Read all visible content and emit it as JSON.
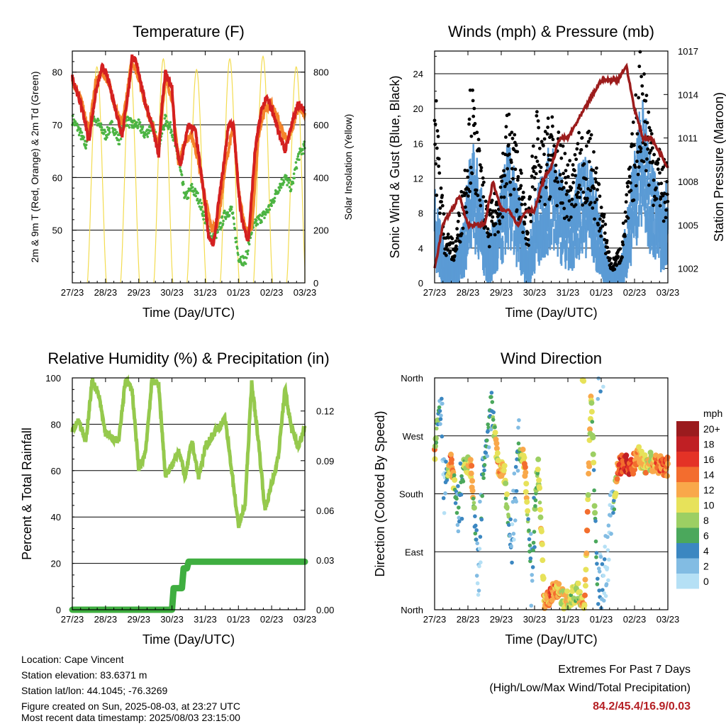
{
  "chart_data": [
    {
      "type": "line",
      "title": "Temperature (F)",
      "xlabel": "Time (Day/UTC)",
      "ylabel": "2m & 9m T (Red, Orange) & 2m Td (Green)",
      "ylabel_right": "Solar Insolation (Yellow)",
      "x_ticks": [
        "27/23",
        "28/23",
        "29/23",
        "30/23",
        "31/23",
        "01/23",
        "02/23",
        "03/23"
      ],
      "ylim": [
        40,
        84
      ],
      "y_ticks": [
        50,
        60,
        70,
        80
      ],
      "ylim_right": [
        0,
        880
      ],
      "y_ticks_right": [
        0,
        200,
        400,
        600,
        800
      ],
      "grid": true,
      "colors": {
        "t2m": "#d42020",
        "t9m": "#f4832a",
        "td2m": "#4cb443",
        "solar": "#f3dc50"
      },
      "series": [
        {
          "name": "2m T",
          "x": [
            0,
            0.1,
            0.3,
            0.5,
            0.7,
            0.9,
            1.0,
            1.1,
            1.3,
            1.5,
            1.7,
            1.8,
            1.9,
            2.0,
            2.2,
            2.4,
            2.6,
            2.7,
            2.8,
            3.0,
            3.1,
            3.25,
            3.4,
            3.5,
            3.7,
            3.85,
            4.0,
            4.1,
            4.25,
            4.4,
            4.55,
            4.7,
            4.85,
            5.0,
            5.1,
            5.3,
            5.5,
            5.7,
            5.85,
            6.0,
            6.2,
            6.4,
            6.6,
            6.8,
            7.0
          ],
          "values": [
            79,
            77,
            73,
            67,
            76,
            81,
            80,
            78,
            73,
            68,
            77,
            83,
            82,
            80,
            74,
            70,
            64,
            74,
            80,
            77,
            67,
            62,
            67,
            70,
            69,
            62,
            55,
            49,
            47,
            55,
            62,
            70,
            70,
            58,
            52,
            48,
            65,
            73,
            75,
            73,
            69,
            65,
            70,
            74,
            73
          ]
        },
        {
          "name": "9m T",
          "x": [
            0,
            0.2,
            0.5,
            0.7,
            0.9,
            1.1,
            1.3,
            1.5,
            1.8,
            2.0,
            2.2,
            2.4,
            2.6,
            2.8,
            3.0,
            3.2,
            3.4,
            3.6,
            3.8,
            4.0,
            4.2,
            4.4,
            4.6,
            4.85,
            5.0,
            5.2,
            5.4,
            5.6,
            5.8,
            6.0,
            6.3,
            6.5,
            6.8,
            7.0
          ],
          "values": [
            78,
            76,
            69,
            78,
            80,
            78,
            73,
            70,
            82,
            79,
            74,
            70,
            66,
            79,
            75,
            63,
            67,
            68,
            63,
            56,
            50,
            52,
            62,
            70,
            58,
            50,
            50,
            68,
            73,
            74,
            69,
            67,
            73,
            72
          ]
        },
        {
          "name": "2m Td",
          "x": [
            0,
            0.2,
            0.4,
            0.6,
            0.8,
            1.0,
            1.2,
            1.4,
            1.6,
            1.8,
            2.0,
            2.2,
            2.4,
            2.6,
            2.8,
            3.0,
            3.2,
            3.4,
            3.6,
            3.8,
            4.0,
            4.2,
            4.4,
            4.6,
            4.8,
            5.0,
            5.2,
            5.4,
            5.6,
            5.8,
            6.0,
            6.2,
            6.4,
            6.6,
            6.8,
            7.0
          ],
          "values": [
            71,
            69,
            66,
            72,
            70,
            68,
            70,
            67,
            71,
            70,
            70,
            68,
            70,
            66,
            71,
            69,
            63,
            56,
            58,
            56,
            52,
            48,
            50,
            53,
            54,
            45,
            44,
            50,
            52,
            53,
            55,
            58,
            60,
            58,
            64,
            66
          ]
        },
        {
          "name": "Solar Insolation",
          "axis": "right",
          "day_peaks": [
            820,
            830,
            850,
            810,
            850,
            860,
            820
          ],
          "night": 0
        }
      ]
    },
    {
      "type": "scatter",
      "title": "Winds (mph) & Pressure (mb)",
      "xlabel": "Time (Day/UTC)",
      "ylabel": "Sonic Wind & Gust (Blue, Black)",
      "ylabel_right": "Station Pressure (Maroon)",
      "x_ticks": [
        "27/23",
        "28/23",
        "29/23",
        "30/23",
        "31/23",
        "01/23",
        "02/23",
        "03/23"
      ],
      "ylim": [
        0,
        26.6
      ],
      "y_ticks": [
        0,
        4,
        8,
        12,
        16,
        20,
        24
      ],
      "ylim_right": [
        1001,
        1017
      ],
      "y_ticks_right": [
        1002,
        1005,
        1008,
        1011,
        1014,
        1017
      ],
      "grid": true,
      "colors": {
        "wind": "#5b9bd5",
        "gust": "#000000",
        "pressure": "#9c1c1c"
      },
      "series": [
        {
          "name": "Sonic Wind",
          "x": [
            0,
            0.3,
            0.6,
            0.9,
            1.1,
            1.3,
            1.6,
            1.9,
            2.2,
            2.5,
            2.8,
            3.0,
            3.2,
            3.5,
            3.8,
            4.1,
            4.4,
            4.7,
            5.0,
            5.3,
            5.6,
            5.9,
            6.2,
            6.5,
            6.8,
            7.0
          ],
          "values": [
            8,
            3,
            2,
            6,
            13,
            10,
            4,
            6,
            12,
            8,
            3,
            7,
            9,
            12,
            9,
            7,
            11,
            10,
            5,
            1,
            2,
            9,
            16,
            11,
            7,
            9
          ]
        },
        {
          "name": "Gust",
          "x": [
            0,
            0.3,
            0.6,
            0.9,
            1.1,
            1.3,
            1.6,
            1.9,
            2.2,
            2.5,
            2.8,
            3.0,
            3.2,
            3.5,
            3.8,
            4.1,
            4.4,
            4.7,
            5.0,
            5.3,
            5.6,
            5.9,
            6.2,
            6.5,
            6.8,
            7.0
          ],
          "values": [
            21,
            6,
            4,
            12,
            21,
            15,
            7,
            10,
            18,
            14,
            6,
            19,
            14,
            18,
            14,
            12,
            16,
            15,
            9,
            2,
            4,
            14,
            25,
            17,
            13,
            12
          ]
        },
        {
          "name": "Station Pressure",
          "axis": "right",
          "x": [
            0,
            0.25,
            0.5,
            0.75,
            1.0,
            1.25,
            1.5,
            1.75,
            2.0,
            2.25,
            2.5,
            2.75,
            3.0,
            3.25,
            3.5,
            3.75,
            4.0,
            4.25,
            4.5,
            4.75,
            5.0,
            5.25,
            5.5,
            5.75,
            6.0,
            6.25,
            6.5,
            6.75,
            7.0
          ],
          "values": [
            1002,
            1005,
            1006,
            1007,
            1005,
            1005,
            1005,
            1008,
            1006,
            1006,
            1005,
            1006,
            1006,
            1008,
            1009,
            1011,
            1011,
            1012,
            1013,
            1014,
            1015,
            1015,
            1015,
            1016,
            1013,
            1011,
            1011,
            1010,
            1009
          ]
        }
      ]
    },
    {
      "type": "line",
      "title": "Relative Humidity (%) & Precipitation (in)",
      "xlabel": "Time (Day/UTC)",
      "ylabel": "Percent & Total Rainfall",
      "x_ticks": [
        "27/23",
        "28/23",
        "29/23",
        "30/23",
        "31/23",
        "01/23",
        "02/23",
        "03/23"
      ],
      "ylim": [
        0,
        100
      ],
      "y_ticks": [
        0,
        20,
        40,
        60,
        80,
        100
      ],
      "ylim_right": [
        0,
        0.14
      ],
      "y_ticks_right": [
        "0.00",
        "0.03",
        "0.06",
        "0.09",
        "0.12"
      ],
      "grid": true,
      "colors": {
        "rh": "#95c94d",
        "precip": "#3fae40"
      },
      "series": [
        {
          "name": "Relative Humidity",
          "x": [
            0,
            0.2,
            0.4,
            0.6,
            0.8,
            1.0,
            1.2,
            1.4,
            1.6,
            1.8,
            2.0,
            2.2,
            2.4,
            2.6,
            2.8,
            3.0,
            3.2,
            3.4,
            3.6,
            3.8,
            4.0,
            4.2,
            4.6,
            4.8,
            5.0,
            5.2,
            5.4,
            5.6,
            5.8,
            6.0,
            6.2,
            6.4,
            6.6,
            6.8,
            7.0
          ],
          "values": [
            78,
            82,
            72,
            99,
            92,
            76,
            74,
            73,
            99,
            95,
            60,
            68,
            99,
            97,
            58,
            62,
            69,
            57,
            73,
            57,
            70,
            75,
            82,
            60,
            36,
            45,
            98,
            73,
            43,
            54,
            66,
            95,
            78,
            70,
            79
          ]
        },
        {
          "name": "Total Precipitation",
          "axis": "right",
          "x": [
            0,
            3.0,
            3.05,
            3.3,
            3.35,
            3.45,
            3.5,
            7.0
          ],
          "values": [
            0,
            0,
            0.013,
            0.013,
            0.025,
            0.025,
            0.029,
            0.029
          ]
        }
      ]
    },
    {
      "type": "scatter",
      "title": "Wind Direction",
      "xlabel": "Time (Day/UTC)",
      "ylabel": "Direction (Colored By Speed)",
      "x_ticks": [
        "27/23",
        "28/23",
        "29/23",
        "30/23",
        "31/23",
        "01/23",
        "02/23",
        "03/23"
      ],
      "y_tick_labels": [
        "North",
        "East",
        "South",
        "West",
        "North"
      ],
      "ylim": [
        0,
        360
      ],
      "grid": true,
      "legend": {
        "title": "mph",
        "position": "right",
        "labels": [
          "20+",
          "18",
          "16",
          "14",
          "12",
          "10",
          "8",
          "6",
          "4",
          "2",
          "0"
        ],
        "colors": [
          "#9b1b1e",
          "#c01f24",
          "#e43226",
          "#f36d2e",
          "#f9a84a",
          "#e7e25a",
          "#9ccf63",
          "#4ba85c",
          "#3b87c1",
          "#82bce3",
          "#b5e0f5"
        ]
      },
      "series": [
        {
          "name": "Direction",
          "x": [
            0,
            0.15,
            0.3,
            0.5,
            0.7,
            0.9,
            1.1,
            1.3,
            1.5,
            1.7,
            1.9,
            2.1,
            2.3,
            2.5,
            2.7,
            2.9,
            3.1,
            3.3,
            3.5,
            3.7,
            3.9,
            4.1,
            4.3,
            4.5,
            4.7,
            4.9,
            5.1,
            5.3,
            5.5,
            5.7,
            5.9,
            6.1,
            6.3,
            6.5,
            6.7,
            6.9
          ],
          "values": [
            240,
            330,
            200,
            230,
            150,
            230,
            220,
            60,
            230,
            330,
            225,
            210,
            80,
            250,
            230,
            50,
            230,
            10,
            25,
            30,
            15,
            20,
            30,
            0,
            335,
            15,
            50,
            130,
            220,
            230,
            220,
            240,
            225,
            230,
            225,
            222
          ],
          "speeds": [
            12,
            3,
            1,
            14,
            2,
            8,
            12,
            1,
            6,
            4,
            12,
            10,
            2,
            3,
            12,
            3,
            8,
            12,
            14,
            12,
            10,
            9,
            8,
            12,
            10,
            3,
            2,
            1,
            14,
            16,
            15,
            12,
            11,
            10,
            14,
            14
          ]
        }
      ]
    }
  ],
  "info": {
    "location": "Location: Cape Vincent",
    "elevation": "Station elevation: 83.6371 m",
    "latlon": "Station lat/lon: 44.1045; -76.3269",
    "created": "Figure created on Sun, 2025-08-03, at 23:27 UTC",
    "recent": "Most recent data timestamp: 2025/08/03 23:15:00"
  },
  "extremes": {
    "title": "Extremes For Past 7 Days",
    "subtitle": "(High/Low/Max Wind/Total Precipitation)",
    "values": "84.2/45.4/16.9/0.03"
  }
}
